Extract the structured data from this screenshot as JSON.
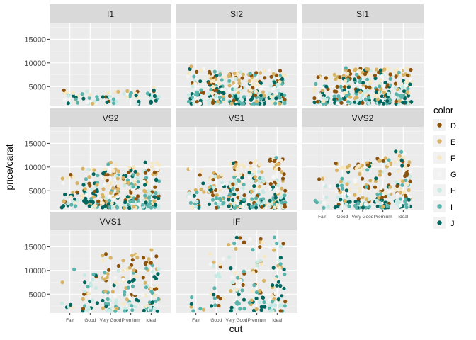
{
  "chart_data": {
    "type": "scatter",
    "title": "",
    "xlabel": "cut",
    "ylabel": "price/carat",
    "x_categories": [
      "Fair",
      "Good",
      "Very Good",
      "Premium",
      "Ideal"
    ],
    "ylim": [
      1000,
      18500
    ],
    "y_ticks": [
      5000,
      10000,
      15000
    ],
    "y_tick_labels": [
      "5000",
      "10000",
      "15000"
    ],
    "legend": {
      "title": "color",
      "position": "right",
      "levels": [
        "D",
        "E",
        "F",
        "G",
        "H",
        "I",
        "J"
      ],
      "colors": [
        "#8C510A",
        "#D8B365",
        "#F6E8C3",
        "#F5F5F5",
        "#C7EAE5",
        "#5AB4AC",
        "#01665E"
      ]
    },
    "panel_background": "#EBEBEB",
    "strip_background": "#D9D9D9",
    "facets": [
      {
        "clarity": "I1",
        "max_by_cut": [
          4500,
          4000,
          4000,
          4500,
          5200
        ],
        "n_by_cut": [
          14,
          14,
          14,
          14,
          14
        ]
      },
      {
        "clarity": "SI2",
        "max_by_cut": [
          9800,
          8500,
          8500,
          8500,
          8500
        ],
        "n_by_cut": [
          40,
          70,
          70,
          70,
          70
        ]
      },
      {
        "clarity": "SI1",
        "max_by_cut": [
          7500,
          9000,
          9000,
          9000,
          9000
        ],
        "n_by_cut": [
          40,
          80,
          80,
          80,
          80
        ]
      },
      {
        "clarity": "VS2",
        "max_by_cut": [
          9000,
          10000,
          11000,
          11000,
          11000
        ],
        "n_by_cut": [
          30,
          60,
          80,
          80,
          80
        ]
      },
      {
        "clarity": "VS1",
        "max_by_cut": [
          10000,
          9000,
          11000,
          11500,
          12000
        ],
        "n_by_cut": [
          25,
          50,
          80,
          80,
          80
        ]
      },
      {
        "clarity": "VVS2",
        "max_by_cut": [
          9000,
          11000,
          11000,
          12000,
          13500
        ],
        "n_by_cut": [
          15,
          40,
          60,
          60,
          70
        ]
      },
      {
        "clarity": "VVS1",
        "max_by_cut": [
          11000,
          10000,
          14000,
          14000,
          14500
        ],
        "n_by_cut": [
          8,
          25,
          45,
          45,
          55
        ]
      },
      {
        "clarity": "IF",
        "max_by_cut": [
          5000,
          15500,
          17000,
          17000,
          17000
        ],
        "n_by_cut": [
          6,
          20,
          40,
          40,
          50
        ]
      }
    ]
  }
}
